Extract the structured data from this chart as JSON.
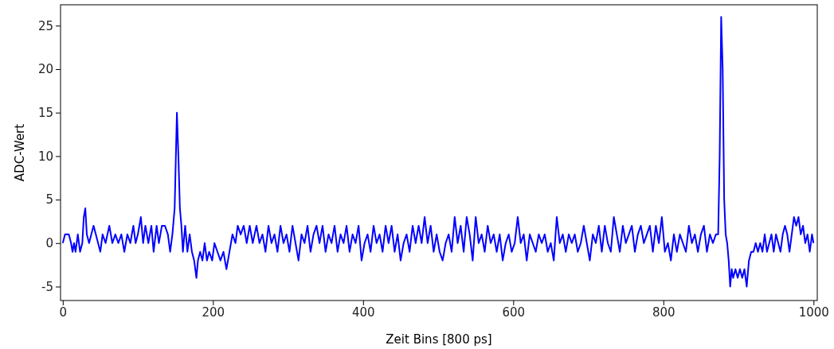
{
  "chart_data": {
    "type": "line",
    "xlabel": "Zeit Bins [800 ps]",
    "ylabel": "ADC-Wert",
    "xlim": [
      -3,
      1005
    ],
    "ylim": [
      -6.6,
      27.4
    ],
    "xticks": [
      0,
      200,
      400,
      600,
      800,
      1000
    ],
    "yticks": [
      -5,
      0,
      5,
      10,
      15,
      20,
      25
    ],
    "grid": false,
    "line_style": "solid",
    "marker": "none",
    "series": [
      {
        "color": "#0000ff",
        "x": [
          0,
          3,
          8,
          11,
          13,
          15,
          17,
          20,
          23,
          26,
          28,
          30,
          32,
          35,
          38,
          41,
          44,
          47,
          50,
          53,
          57,
          62,
          66,
          70,
          74,
          78,
          82,
          86,
          90,
          94,
          97,
          100,
          104,
          107,
          110,
          114,
          118,
          121,
          125,
          128,
          132,
          136,
          140,
          143,
          146,
          149,
          152,
          154,
          156,
          158,
          160,
          163,
          166,
          169,
          172,
          175,
          178,
          180,
          183,
          186,
          189,
          192,
          195,
          199,
          202,
          206,
          210,
          214,
          218,
          222,
          226,
          230,
          233,
          237,
          241,
          245,
          249,
          253,
          258,
          262,
          266,
          270,
          274,
          278,
          282,
          286,
          290,
          294,
          298,
          302,
          306,
          310,
          314,
          318,
          322,
          326,
          330,
          334,
          338,
          342,
          346,
          350,
          354,
          358,
          362,
          366,
          370,
          374,
          378,
          382,
          386,
          390,
          394,
          398,
          402,
          406,
          410,
          414,
          418,
          422,
          426,
          430,
          434,
          438,
          442,
          446,
          450,
          454,
          458,
          462,
          466,
          470,
          474,
          478,
          482,
          486,
          490,
          494,
          498,
          502,
          506,
          510,
          514,
          518,
          522,
          526,
          530,
          534,
          538,
          542,
          546,
          550,
          554,
          558,
          562,
          566,
          570,
          574,
          578,
          582,
          586,
          590,
          594,
          598,
          602,
          606,
          610,
          614,
          618,
          622,
          626,
          630,
          634,
          638,
          642,
          646,
          650,
          654,
          658,
          662,
          666,
          670,
          674,
          678,
          682,
          686,
          690,
          694,
          698,
          702,
          706,
          710,
          714,
          718,
          722,
          726,
          730,
          734,
          738,
          742,
          746,
          750,
          754,
          758,
          762,
          766,
          770,
          774,
          778,
          782,
          786,
          790,
          794,
          798,
          802,
          806,
          810,
          814,
          818,
          822,
          826,
          830,
          834,
          838,
          842,
          846,
          850,
          854,
          858,
          862,
          866,
          870,
          873,
          875,
          877,
          879,
          881,
          883,
          885,
          887,
          889,
          891,
          893,
          896,
          899,
          902,
          905,
          908,
          911,
          914,
          917,
          920,
          923,
          926,
          929,
          932,
          935,
          938,
          941,
          944,
          947,
          950,
          953,
          956,
          959,
          962,
          965,
          968,
          971,
          974,
          977,
          980,
          983,
          986,
          989,
          992,
          995,
          998,
          1000
        ],
        "values": [
          0,
          1,
          1,
          0,
          -1,
          0,
          -1,
          1,
          -1,
          0,
          3,
          4,
          1,
          0,
          1,
          2,
          1,
          0,
          -1,
          1,
          0,
          2,
          0,
          1,
          0,
          1,
          -1,
          1,
          0,
          2,
          0,
          1,
          3,
          0,
          2,
          0,
          2,
          -1,
          2,
          0,
          2,
          2,
          1,
          -1,
          1,
          4,
          15,
          10,
          4,
          2,
          -1,
          2,
          -1,
          1,
          -1,
          -2,
          -4,
          -2,
          -1,
          -2,
          0,
          -2,
          -1,
          -2,
          0,
          -1,
          -2,
          -1,
          -3,
          -1,
          1,
          0,
          2,
          1,
          2,
          0,
          2,
          0,
          2,
          0,
          1,
          -1,
          2,
          0,
          1,
          -1,
          2,
          0,
          1,
          -1,
          2,
          0,
          -2,
          1,
          0,
          2,
          -1,
          1,
          2,
          0,
          2,
          -1,
          1,
          0,
          2,
          -1,
          1,
          0,
          2,
          -1,
          1,
          0,
          2,
          -2,
          0,
          1,
          -1,
          2,
          0,
          1,
          -1,
          2,
          0,
          2,
          -1,
          1,
          -2,
          0,
          1,
          -1,
          2,
          0,
          2,
          0,
          3,
          0,
          2,
          -1,
          1,
          -1,
          -2,
          0,
          1,
          -1,
          3,
          0,
          2,
          -1,
          3,
          1,
          -2,
          3,
          0,
          1,
          -1,
          2,
          0,
          1,
          -1,
          1,
          -2,
          0,
          1,
          -1,
          0,
          3,
          0,
          1,
          -2,
          1,
          0,
          -1,
          1,
          0,
          1,
          -1,
          0,
          -2,
          3,
          0,
          1,
          -1,
          1,
          0,
          1,
          -1,
          0,
          2,
          0,
          -2,
          1,
          0,
          2,
          -1,
          2,
          0,
          -1,
          3,
          1,
          -1,
          2,
          0,
          1,
          2,
          -1,
          1,
          2,
          0,
          1,
          2,
          -1,
          2,
          0,
          3,
          -1,
          0,
          -2,
          1,
          -1,
          1,
          0,
          -1,
          2,
          0,
          1,
          -1,
          1,
          2,
          -1,
          1,
          0,
          1,
          1,
          10,
          26,
          20,
          5,
          1,
          0,
          -2,
          -5,
          -3,
          -4,
          -3,
          -4,
          -3,
          -4,
          -3,
          -5,
          -2,
          -1,
          -1,
          0,
          -1,
          0,
          -1,
          1,
          -1,
          0,
          1,
          -1,
          1,
          0,
          -1,
          1,
          2,
          1,
          -1,
          1,
          3,
          2,
          3,
          1,
          2,
          0,
          1,
          -1,
          1,
          0
        ]
      }
    ]
  }
}
